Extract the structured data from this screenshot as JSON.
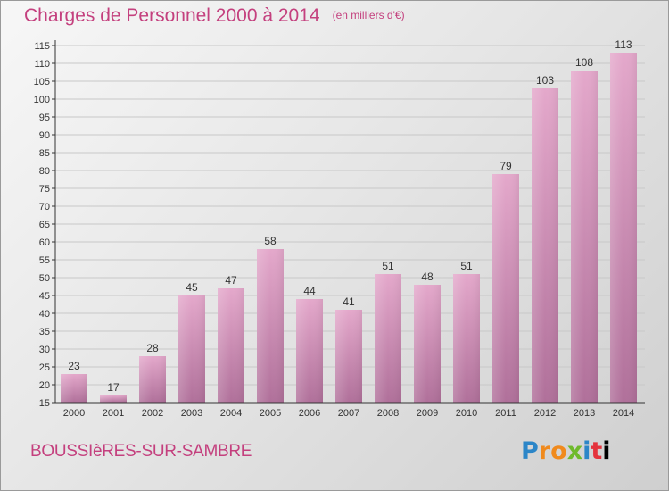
{
  "title": "Charges de Personnel 2000 à 2014",
  "unit_note": "(en milliers d'€)",
  "commune": "BOUSSIèRES-SUR-SAMBRE",
  "brand": [
    "P",
    "r",
    "o",
    "x",
    "i",
    "t",
    "i"
  ],
  "colors": {
    "title": "#c4407e",
    "bar_light": "#e4a8cb",
    "bar_dark": "#b0709a",
    "grid": "#c8c8c8",
    "axis": "#333333"
  },
  "chart_data": {
    "type": "bar",
    "categories": [
      "2000",
      "2001",
      "2002",
      "2003",
      "2004",
      "2005",
      "2006",
      "2007",
      "2008",
      "2009",
      "2010",
      "2011",
      "2012",
      "2013",
      "2014"
    ],
    "values": [
      23,
      17,
      28,
      45,
      47,
      58,
      44,
      41,
      51,
      48,
      51,
      79,
      103,
      108,
      113
    ],
    "yticks": [
      15,
      20,
      25,
      30,
      35,
      40,
      45,
      50,
      55,
      60,
      65,
      70,
      75,
      80,
      85,
      90,
      95,
      100,
      105,
      110,
      115
    ],
    "ylim": [
      15,
      115
    ],
    "grid": true,
    "data_labels": true
  }
}
